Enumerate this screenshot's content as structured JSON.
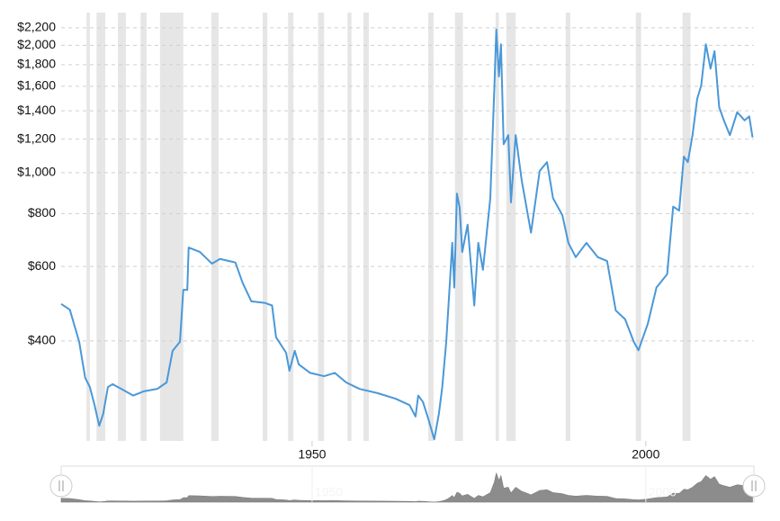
{
  "chart_data": {
    "type": "line",
    "log_scale": true,
    "grid": true,
    "x": [
      1912.4,
      1913.7,
      1915.1,
      1916.0,
      1916.7,
      1917.4,
      1918.1,
      1918.7,
      1919.4,
      1920.1,
      1921.4,
      1923.2,
      1924.8,
      1926.8,
      1928.2,
      1929.1,
      1930.2,
      1930.7,
      1931.3,
      1931.5,
      1933.2,
      1935.0,
      1936.2,
      1938.5,
      1939.6,
      1940.9,
      1942.9,
      1944.0,
      1944.6,
      1946.1,
      1946.6,
      1947.4,
      1948.0,
      1949.7,
      1951.8,
      1953.4,
      1955.1,
      1957.1,
      1959.8,
      1962.5,
      1964.6,
      1965.5,
      1965.9,
      1966.6,
      1967.4,
      1968.3,
      1969.0,
      1969.5,
      1970.1,
      1970.6,
      1971.0,
      1971.3,
      1971.7,
      1972.1,
      1972.5,
      1973.3,
      1974.3,
      1974.9,
      1975.6,
      1976.7,
      1977.3,
      1977.6,
      1978.0,
      1978.3,
      1978.7,
      1979.4,
      1979.8,
      1980.5,
      1981.4,
      1982.8,
      1984.1,
      1985.2,
      1986.1,
      1987.5,
      1988.4,
      1989.5,
      1991.1,
      1992.8,
      1994.2,
      1995.5,
      1996.9,
      1998.2,
      1998.9,
      2000.3,
      2001.6,
      2003.2,
      2004.1,
      2005.0,
      2005.7,
      2006.3,
      2007.0,
      2007.7,
      2008.3,
      2009.0,
      2009.7,
      2010.3,
      2011.0,
      2011.7,
      2012.6,
      2013.7,
      2014.8,
      2015.5,
      2016.0
    ],
    "series": [
      {
        "color": "#4a98d8",
        "values": [
          489,
          474,
          398,
          327,
          311,
          282,
          252,
          269,
          311,
          316,
          308,
          297,
          304,
          308,
          319,
          379,
          398,
          528,
          528,
          665,
          649,
          609,
          625,
          613,
          548,
          496,
          492,
          485,
          408,
          375,
          340,
          379,
          352,
          336,
          330,
          336,
          319,
          308,
          301,
          292,
          282,
          265,
          297,
          287,
          262,
          234,
          269,
          311,
          398,
          535,
          682,
          535,
          892,
          827,
          649,
          753,
          485,
          682,
          589,
          870,
          1573,
          2180,
          1688,
          2011,
          1167,
          1226,
          850,
          1226,
          960,
          721,
          1009,
          1059,
          870,
          793,
          682,
          631,
          682,
          631,
          618,
          472,
          450,
          398,
          380,
          439,
          535,
          575,
          831,
          813,
          1091,
          1059,
          1226,
          1494,
          1606,
          2011,
          1761,
          1937,
          1428,
          1329,
          1226,
          1390,
          1329,
          1358,
          1211
        ]
      }
    ],
    "recessions": [
      [
        1916.2,
        1916.7
      ],
      [
        1917.7,
        1919.0
      ],
      [
        1920.9,
        1922.1
      ],
      [
        1924.3,
        1925.2
      ],
      [
        1927.2,
        1930.7
      ],
      [
        1934.9,
        1936.0
      ],
      [
        1942.6,
        1943.3
      ],
      [
        1946.4,
        1947.2
      ],
      [
        1950.9,
        1951.8
      ],
      [
        1955.3,
        1955.9
      ],
      [
        1957.7,
        1958.5
      ],
      [
        1967.4,
        1968.2
      ],
      [
        1971.4,
        1972.6
      ],
      [
        1977.5,
        1978.0
      ],
      [
        1979.1,
        1980.5
      ],
      [
        1988.0,
        1988.7
      ],
      [
        1998.5,
        1999.3
      ],
      [
        2005.5,
        2006.7
      ]
    ],
    "xlim": [
      1912.4,
      2016.2
    ],
    "xticks": [
      1950,
      2000
    ],
    "ylim": [
      232,
      2390
    ],
    "yticks": [
      {
        "value": 400,
        "label": "$400"
      },
      {
        "value": 600,
        "label": "$600"
      },
      {
        "value": 800,
        "label": "$800"
      },
      {
        "value": 1000,
        "label": "$1,000"
      },
      {
        "value": 1200,
        "label": "$1,200"
      },
      {
        "value": 1400,
        "label": "$1,400"
      },
      {
        "value": 1600,
        "label": "$1,600"
      },
      {
        "value": 1800,
        "label": "$1,800"
      },
      {
        "value": 2000,
        "label": "$2,000"
      },
      {
        "value": 2200,
        "label": "$2,200"
      }
    ]
  }
}
